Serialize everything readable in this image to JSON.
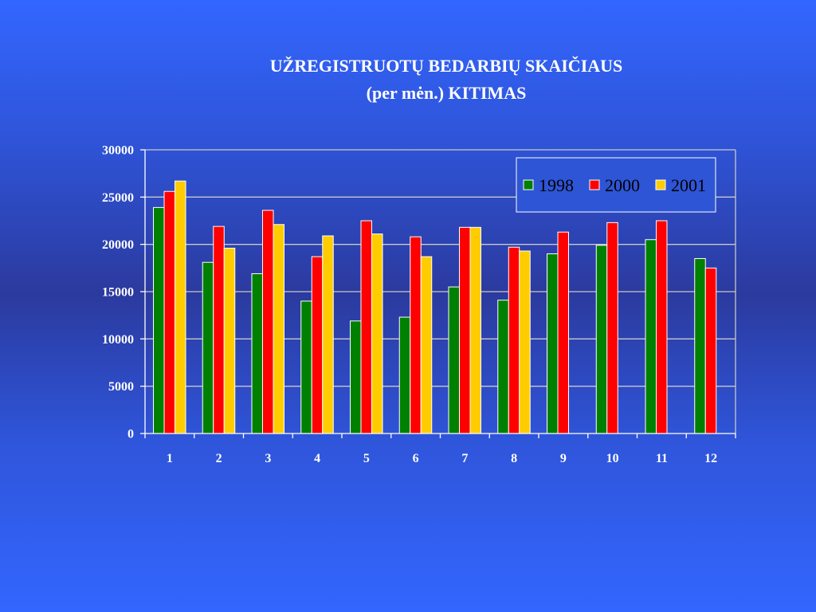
{
  "slide": {
    "title_line1": "UŽREGISTRUOTŲ BEDARBIŲ SKAIČIAUS",
    "title_line2": "(per mėn.) KITIMAS"
  },
  "colors": {
    "background": "#3366ff",
    "grid": "#c8c8c8",
    "legend_box": "#2e55d6",
    "text": "#ffffff"
  },
  "chart_data": {
    "type": "bar",
    "title": "UŽREGISTRUOTŲ BEDARBIŲ SKAIČIAUS (per mėn.) KITIMAS",
    "xlabel": "",
    "ylabel": "",
    "categories": [
      "1",
      "2",
      "3",
      "4",
      "5",
      "6",
      "7",
      "8",
      "9",
      "10",
      "11",
      "12"
    ],
    "ylim": [
      0,
      30000
    ],
    "yticks": [
      0,
      5000,
      10000,
      15000,
      20000,
      25000,
      30000
    ],
    "grid": true,
    "legend_position": "top-right",
    "series": [
      {
        "name": "1998",
        "color": "#008000",
        "values": [
          23900,
          18100,
          16900,
          14000,
          11900,
          12300,
          15500,
          14100,
          19000,
          19900,
          20500,
          18500
        ]
      },
      {
        "name": "2000",
        "color": "#ff0000",
        "values": [
          25600,
          21900,
          23600,
          18700,
          22500,
          20800,
          21800,
          19700,
          21300,
          22300,
          22500,
          17500
        ]
      },
      {
        "name": "2001",
        "color": "#ffcc00",
        "values": [
          26700,
          19600,
          22100,
          20900,
          21100,
          18700,
          21800,
          19300,
          null,
          null,
          null,
          null
        ]
      }
    ]
  }
}
